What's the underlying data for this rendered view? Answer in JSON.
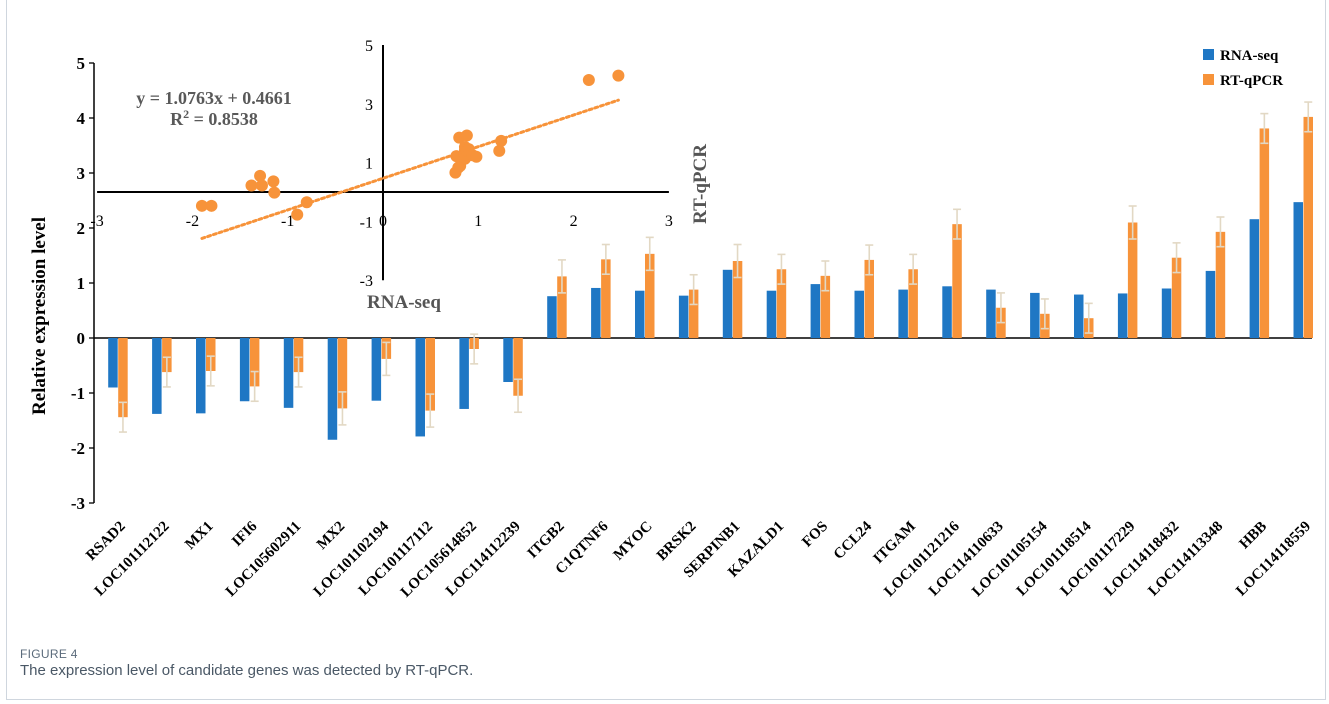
{
  "figure": {
    "label": "FIGURE 4",
    "caption": "The expression level of candidate genes was detected by RT-qPCR."
  },
  "colors": {
    "rna": "#1f77c4",
    "qpcr": "#f7933a",
    "errorbar": "#e2d8c4",
    "axis": "#000000"
  },
  "chart_data": [
    {
      "type": "bar",
      "ylabel": "Relative expression level",
      "ylim": [
        -3,
        5
      ],
      "yticks": [
        "-3",
        "-2",
        "-1",
        "0",
        "1",
        "2",
        "3",
        "4",
        "5"
      ],
      "grid": false,
      "legend_position": "top-right",
      "categories": [
        "RSAD2",
        "LOC101112122",
        "MX1",
        "IFI6",
        "LOC105602911",
        "MX2",
        "LOC101102194",
        "LOC101117112",
        "LOC105614852",
        "LOC114112239",
        "ITGB2",
        "C1QTNF6",
        "MYOC",
        "BRSK2",
        "SERPINB1",
        "KAZALD1",
        "FOS",
        "CCL24",
        "ITGAM",
        "LOC101121216",
        "LOC114110633",
        "LOC101105154",
        "LOC101118514",
        "LOC101117229",
        "LOC114118432",
        "LOC114113348",
        "HBB",
        "LOC114118559"
      ],
      "series": [
        {
          "name": "RNA-seq",
          "values": [
            -0.9,
            -1.38,
            -1.37,
            -1.15,
            -1.27,
            -1.85,
            -1.14,
            -1.79,
            -1.29,
            -0.8,
            0.76,
            0.91,
            0.86,
            0.77,
            1.24,
            0.86,
            0.98,
            0.86,
            0.88,
            0.94,
            0.88,
            0.82,
            0.79,
            0.81,
            0.9,
            1.22,
            2.16,
            2.47
          ]
        },
        {
          "name": "RT-qPCR",
          "values": [
            -1.44,
            -0.62,
            -0.6,
            -0.88,
            -0.62,
            -1.28,
            -0.38,
            -1.32,
            -0.2,
            -1.05,
            1.12,
            1.43,
            1.53,
            0.88,
            1.4,
            1.25,
            1.13,
            1.42,
            1.25,
            2.07,
            0.55,
            0.44,
            0.36,
            2.1,
            1.46,
            1.93,
            3.81,
            4.02
          ]
        }
      ],
      "errors": [
        0.27,
        0.27,
        0.27,
        0.27,
        0.27,
        0.3,
        0.3,
        0.3,
        0.27,
        0.3,
        0.3,
        0.27,
        0.3,
        0.27,
        0.3,
        0.27,
        0.27,
        0.27,
        0.27,
        0.27,
        0.27,
        0.27,
        0.27,
        0.3,
        0.27,
        0.27,
        0.27,
        0.27
      ]
    },
    {
      "type": "scatter",
      "xlabel": "RNA-seq",
      "ylabel": "RT-qPCR",
      "xlim": [
        -3,
        3
      ],
      "ylim": [
        -3,
        5
      ],
      "xticks": [
        "-3",
        "-2",
        "-1",
        "0",
        "1",
        "2",
        "3"
      ],
      "yticks": [
        "-3",
        "-1",
        "1",
        "3",
        "5"
      ],
      "equation": "y = 1.0763x + 0.4661",
      "r2_prefix": "R",
      "r2_sup": "2",
      "r2_value": " = 0.8538",
      "trendline": {
        "slope": 1.0763,
        "intercept": 0.4661,
        "x_range": [
          -1.9,
          2.47
        ]
      },
      "x": [
        -1.9,
        -1.8,
        -1.38,
        -1.29,
        -1.27,
        -1.15,
        -1.14,
        -0.9,
        -0.8,
        0.76,
        0.77,
        0.8,
        0.81,
        0.82,
        0.86,
        0.86,
        0.86,
        0.86,
        0.88,
        0.88,
        0.9,
        0.94,
        0.98,
        1.22,
        1.24,
        2.16,
        2.47,
        0.79
      ],
      "y": [
        -0.47,
        -0.47,
        0.22,
        0.55,
        0.22,
        0.36,
        -0.02,
        -0.77,
        -0.35,
        0.66,
        1.22,
        1.85,
        0.89,
        1.1,
        1.42,
        1.53,
        1.25,
        1.13,
        1.92,
        1.4,
        1.46,
        1.25,
        1.2,
        1.4,
        1.74,
        3.81,
        3.96,
        0.83
      ]
    }
  ]
}
